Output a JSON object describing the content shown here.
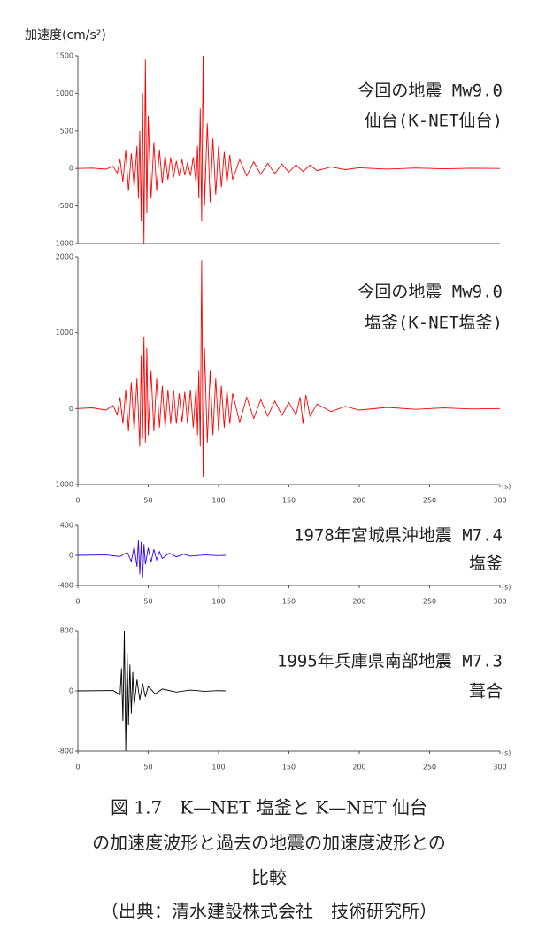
{
  "chart_data": [
    {
      "type": "line",
      "ylabel": "加速度(cm/s²)",
      "color": "#ff0000",
      "x": [
        0,
        10,
        20,
        25,
        28,
        30,
        32,
        34,
        36,
        38,
        40,
        42,
        43,
        44,
        45,
        46,
        47,
        48,
        49,
        50,
        52,
        54,
        56,
        58,
        60,
        62,
        64,
        66,
        68,
        70,
        72,
        74,
        76,
        78,
        80,
        82,
        84,
        85,
        86,
        87,
        88,
        89,
        90,
        92,
        94,
        96,
        98,
        100,
        102,
        104,
        106,
        108,
        110,
        115,
        120,
        125,
        130,
        135,
        140,
        145,
        150,
        155,
        160,
        165,
        170,
        180,
        190,
        200,
        220,
        240,
        260,
        280,
        300
      ],
      "values": [
        0,
        5,
        -10,
        30,
        -60,
        120,
        -180,
        250,
        -300,
        200,
        -250,
        300,
        -400,
        500,
        -700,
        1000,
        -1000,
        1450,
        -600,
        700,
        -400,
        350,
        -300,
        250,
        -200,
        180,
        -150,
        150,
        -120,
        100,
        -100,
        120,
        -90,
        80,
        -100,
        150,
        -200,
        300,
        -400,
        800,
        -700,
        1500,
        -500,
        600,
        -450,
        400,
        -350,
        300,
        -250,
        220,
        -200,
        180,
        -150,
        120,
        -100,
        90,
        -80,
        70,
        -70,
        60,
        -50,
        50,
        -40,
        45,
        -30,
        20,
        -15,
        10,
        -8,
        6,
        -5,
        4,
        0
      ],
      "xlim": [
        0,
        300
      ],
      "ylim": [
        -1000,
        1500
      ],
      "yticks": [
        1500,
        1000,
        500,
        0,
        -500,
        -1000
      ],
      "annotations": [
        "今回の地震 Mw9.0",
        "仙台(K-NET仙台)"
      ]
    },
    {
      "type": "line",
      "color": "#ff0000",
      "x": [
        0,
        10,
        20,
        25,
        28,
        30,
        32,
        34,
        36,
        38,
        40,
        42,
        44,
        45,
        46,
        47,
        48,
        49,
        50,
        52,
        54,
        56,
        58,
        60,
        62,
        64,
        66,
        68,
        70,
        72,
        74,
        76,
        78,
        80,
        82,
        84,
        85,
        86,
        87,
        88,
        89,
        90,
        92,
        94,
        96,
        98,
        100,
        102,
        104,
        106,
        108,
        110,
        115,
        120,
        125,
        130,
        135,
        140,
        145,
        150,
        155,
        158,
        160,
        162,
        165,
        170,
        180,
        190,
        200,
        220,
        240,
        260,
        280,
        300
      ],
      "values": [
        0,
        10,
        -20,
        40,
        -80,
        150,
        -200,
        250,
        -300,
        350,
        -300,
        400,
        -500,
        700,
        -400,
        950,
        -450,
        800,
        -350,
        500,
        -300,
        400,
        -250,
        300,
        -250,
        250,
        -200,
        250,
        -200,
        200,
        -180,
        220,
        -200,
        250,
        -250,
        300,
        -350,
        500,
        -500,
        1950,
        -900,
        800,
        -450,
        500,
        -350,
        400,
        -300,
        300,
        -250,
        250,
        -200,
        200,
        -180,
        150,
        -130,
        120,
        -100,
        100,
        -90,
        80,
        -80,
        150,
        -200,
        180,
        -100,
        60,
        -40,
        30,
        -20,
        15,
        -10,
        8,
        -5,
        0
      ],
      "xlim": [
        0,
        300
      ],
      "ylim": [
        -1000,
        2000
      ],
      "yticks": [
        2000,
        1000,
        0,
        -1000
      ],
      "xticks": [
        0,
        50,
        100,
        150,
        200,
        250,
        300
      ],
      "xlabel": "(s)",
      "annotations": [
        "今回の地震 Mw9.0",
        "塩釜(K-NET塩釜)"
      ]
    },
    {
      "type": "line",
      "color": "#3300ff",
      "x": [
        0,
        20,
        30,
        35,
        38,
        40,
        42,
        43,
        44,
        45,
        46,
        47,
        48,
        50,
        52,
        54,
        56,
        58,
        60,
        65,
        70,
        75,
        80,
        90,
        100,
        105
      ],
      "values": [
        0,
        5,
        -15,
        40,
        -80,
        120,
        -150,
        200,
        -250,
        180,
        -300,
        150,
        -120,
        100,
        -90,
        80,
        -60,
        50,
        -40,
        30,
        -20,
        15,
        -10,
        5,
        -3,
        0
      ],
      "xlim": [
        0,
        300
      ],
      "ylim": [
        -400,
        400
      ],
      "yticks": [
        400,
        0,
        -400
      ],
      "xticks": [
        0,
        50,
        100,
        150,
        200,
        250,
        300
      ],
      "xlabel": "(s)",
      "annotations": [
        "1978年宮城県沖地震 M7.4",
        "塩釜"
      ]
    },
    {
      "type": "line",
      "color": "#000000",
      "x": [
        0,
        25,
        30,
        31,
        32,
        33,
        34,
        35,
        36,
        37,
        38,
        39,
        40,
        42,
        44,
        46,
        48,
        50,
        55,
        60,
        70,
        80,
        90,
        100,
        105
      ],
      "values": [
        0,
        5,
        -50,
        300,
        -400,
        800,
        -800,
        500,
        -450,
        350,
        -300,
        250,
        -200,
        150,
        -120,
        100,
        -80,
        60,
        -40,
        25,
        -15,
        10,
        -5,
        3,
        0
      ],
      "xlim": [
        0,
        300
      ],
      "ylim": [
        -800,
        800
      ],
      "yticks": [
        800,
        0,
        -800
      ],
      "xticks": [
        0,
        50,
        100,
        150,
        200,
        250,
        300
      ],
      "xlabel": "(s)",
      "annotations": [
        "1995年兵庫県南部地震 M7.3",
        "葺合"
      ]
    }
  ],
  "caption": [
    "図 1.7　K—NET 塩釜と K—NET 仙台",
    "の加速度波形と過去の地震の加速度波形との",
    "比較",
    "（出典：清水建設株式会社　技術研究所）"
  ]
}
